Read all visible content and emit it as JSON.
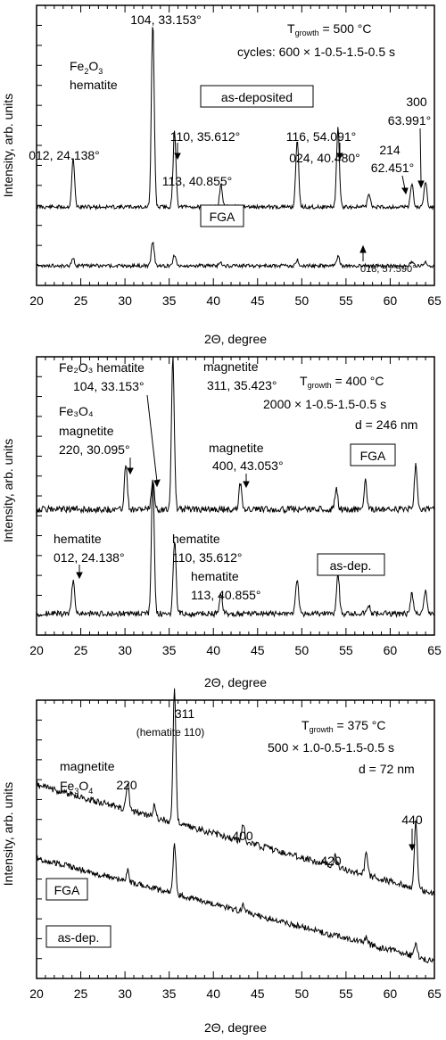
{
  "chart_data": [
    {
      "type": "line",
      "title": "",
      "xlabel": "2Θ, degree",
      "ylabel": "Intensity, arb. units",
      "xlim": [
        20,
        65
      ],
      "x_ticks": [
        "20",
        "25",
        "30",
        "35",
        "40",
        "45",
        "50",
        "55",
        "60",
        "65"
      ],
      "grid": false,
      "growth_label": "T",
      "growth_sub": "growth",
      "growth_value": " = 500 °C",
      "info_lines": [
        "cycles: 600 × 1-0.5-1.5-0.5 s"
      ],
      "material_lines": [
        {
          "main": "Fe",
          "sub1": "2",
          "mid": "O",
          "sub2": "3"
        },
        {
          "main": "hematite"
        }
      ],
      "series": [
        {
          "name": "as-deposited",
          "peaks": [
            [
              24.14,
              0.26
            ],
            [
              33.15,
              1.0
            ],
            [
              35.61,
              0.41
            ],
            [
              40.86,
              0.12
            ],
            [
              49.48,
              0.37
            ],
            [
              54.09,
              0.43
            ],
            [
              57.59,
              0.07
            ],
            [
              62.45,
              0.13
            ],
            [
              63.99,
              0.14
            ]
          ]
        },
        {
          "name": "FGA",
          "peaks": [
            [
              24.14,
              0.12
            ],
            [
              33.15,
              0.43
            ],
            [
              35.61,
              0.2
            ],
            [
              40.86,
              0.05
            ],
            [
              49.48,
              0.1
            ],
            [
              54.09,
              0.17
            ],
            [
              62.45,
              0.06
            ],
            [
              63.99,
              0.06
            ]
          ]
        }
      ],
      "annotations": [
        "104, 33.153°",
        "110, 35.612°",
        "116, 54.091°",
        "012, 24.138°",
        "113, 40.855°",
        "024, 40.480°",
        "300",
        "63.991°",
        "214",
        "62.451°",
        "018, 57.590°"
      ]
    },
    {
      "type": "line",
      "title": "",
      "xlabel": "2Θ, degree",
      "ylabel": "Intensity, arb. units",
      "xlim": [
        20,
        65
      ],
      "x_ticks": [
        "20",
        "25",
        "30",
        "35",
        "40",
        "45",
        "50",
        "55",
        "60",
        "65"
      ],
      "grid": false,
      "growth_label": "T",
      "growth_sub": "growth",
      "growth_value": " = 400 °C",
      "info_lines": [
        "2000 × 1-0.5-1.5-0.5 s",
        "d = 246 nm"
      ],
      "material_lines": [],
      "series": [
        {
          "name": "FGA",
          "peaks": [
            [
              30.1,
              0.3
            ],
            [
              33.15,
              0.2
            ],
            [
              35.42,
              1.0
            ],
            [
              43.05,
              0.17
            ],
            [
              53.9,
              0.14
            ],
            [
              57.2,
              0.19
            ],
            [
              62.9,
              0.3
            ]
          ]
        },
        {
          "name": "as-dep.",
          "peaks": [
            [
              24.14,
              0.25
            ],
            [
              33.15,
              1.0
            ],
            [
              35.61,
              0.55
            ],
            [
              40.86,
              0.14
            ],
            [
              49.48,
              0.27
            ],
            [
              54.09,
              0.3
            ],
            [
              57.59,
              0.06
            ],
            [
              62.45,
              0.15
            ],
            [
              63.99,
              0.16
            ]
          ]
        }
      ],
      "annotations": [
        "Fe₂O₃ hematite",
        "104, 33.153°",
        "magnetite",
        "311, 35.423°",
        "Fe₃O₄",
        "magnetite",
        "220, 30.095°",
        "magnetite",
        "400, 43.053°",
        "hematite",
        "012, 24.138°",
        "hematite",
        "110, 35.612°",
        "hematite",
        "113, 40.855°"
      ]
    },
    {
      "type": "line",
      "title": "",
      "xlabel": "2Θ, degree",
      "ylabel": "Intensity, arb. units",
      "xlim": [
        20,
        65
      ],
      "x_ticks": [
        "20",
        "25",
        "30",
        "35",
        "40",
        "45",
        "50",
        "55",
        "60",
        "65"
      ],
      "grid": false,
      "growth_label": "T",
      "growth_sub": "growth",
      "growth_value": " = 375 °C",
      "info_lines": [
        "500 × 1.0-0.5-1.5-0.5 s",
        "d = 72 nm"
      ],
      "material_lines": [
        {
          "main": "magnetite"
        },
        {
          "main": "Fe",
          "sub1": "3",
          "mid": "O",
          "sub2": "4"
        }
      ],
      "series": [
        {
          "name": "FGA",
          "peaks": [
            [
              30.3,
              0.2
            ],
            [
              33.3,
              0.08
            ],
            [
              35.6,
              1.0
            ],
            [
              43.4,
              0.14
            ],
            [
              53.8,
              0.08
            ],
            [
              57.3,
              0.16
            ],
            [
              62.9,
              0.5
            ]
          ]
        },
        {
          "name": "as-dep.",
          "peaks": [
            [
              30.3,
              0.12
            ],
            [
              35.6,
              0.55
            ],
            [
              43.4,
              0.09
            ],
            [
              57.3,
              0.07
            ],
            [
              62.9,
              0.16
            ]
          ]
        }
      ],
      "annotations": [
        "311",
        "(hematite 110)",
        "220",
        "400",
        "420",
        "440"
      ]
    }
  ]
}
